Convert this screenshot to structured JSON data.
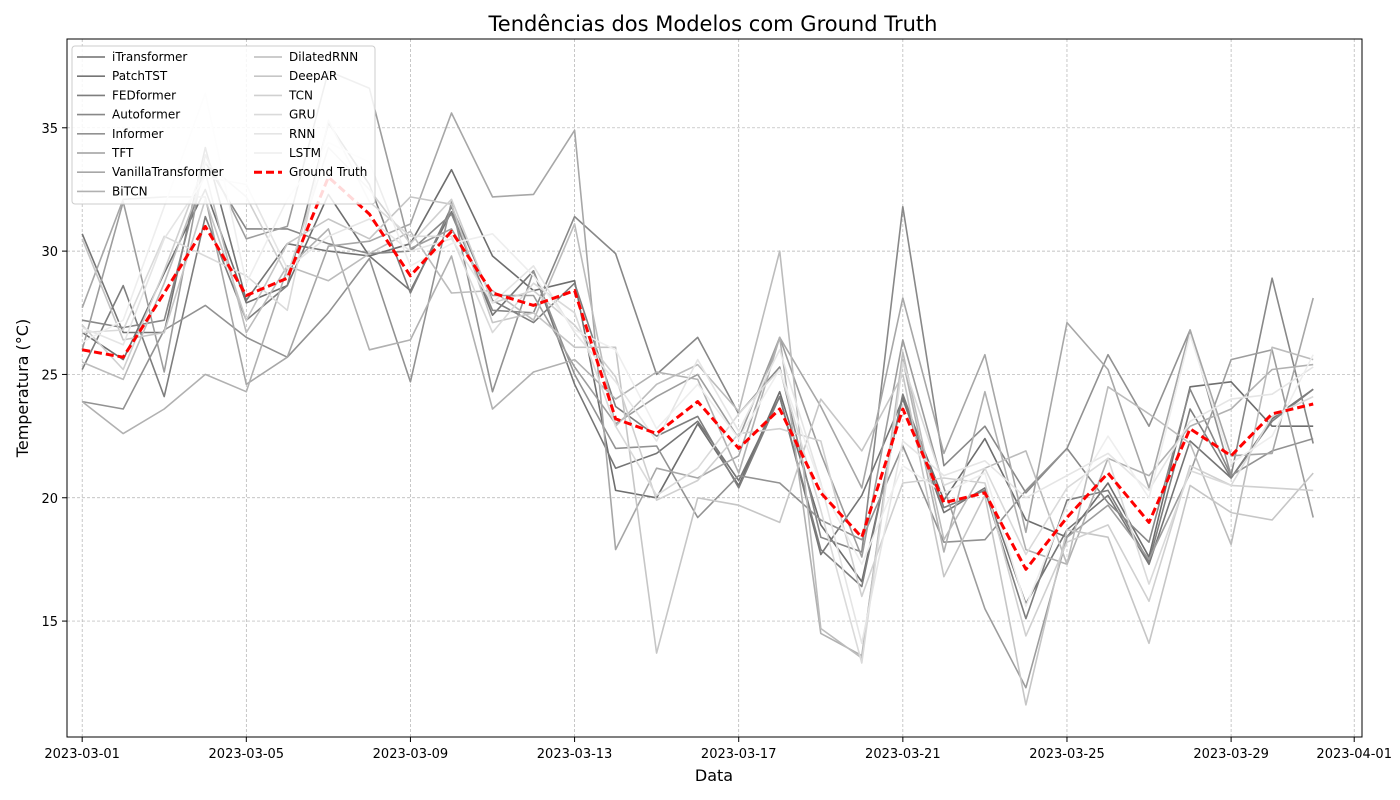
{
  "chart_data": {
    "type": "line",
    "title": "Tendências dos Modelos com Ground Truth",
    "xlabel": "Data",
    "ylabel": "Temperatura (°C)",
    "x": [
      "2023-03-01",
      "2023-03-02",
      "2023-03-03",
      "2023-03-04",
      "2023-03-05",
      "2023-03-06",
      "2023-03-07",
      "2023-03-08",
      "2023-03-09",
      "2023-03-10",
      "2023-03-11",
      "2023-03-12",
      "2023-03-13",
      "2023-03-14",
      "2023-03-15",
      "2023-03-16",
      "2023-03-17",
      "2023-03-18",
      "2023-03-19",
      "2023-03-20",
      "2023-03-21",
      "2023-03-22",
      "2023-03-23",
      "2023-03-24",
      "2023-03-25",
      "2023-03-26",
      "2023-03-27",
      "2023-03-28",
      "2023-03-29",
      "2023-03-30",
      "2023-03-31"
    ],
    "x_ticks": [
      "2023-03-01",
      "2023-03-05",
      "2023-03-09",
      "2023-03-13",
      "2023-03-17",
      "2023-03-21",
      "2023-03-25",
      "2023-03-29",
      "2023-04-01"
    ],
    "xlim": [
      "2023-02-28",
      "2023-04-01"
    ],
    "y_ticks": [
      15,
      20,
      25,
      30,
      35
    ],
    "ylim": [
      10.3,
      38.6
    ],
    "grid": true,
    "legend_position": "top-left",
    "series": [
      {
        "name": "iTransformer",
        "color": "#6e6e6e",
        "width": 1.6,
        "dash": "",
        "values": [
          26.7,
          25.6,
          29.1,
          32.5,
          27.9,
          28.6,
          32.3,
          29.8,
          30.3,
          33.3,
          29.8,
          28.4,
          28.8,
          20.3,
          20.0,
          23.0,
          20.5,
          24.3,
          18.9,
          16.6,
          24.1,
          19.9,
          22.4,
          19.1,
          18.4,
          20.6,
          17.6,
          24.5,
          24.7,
          22.9,
          22.9
        ]
      },
      {
        "name": "PatchTST",
        "color": "#757575",
        "width": 1.6,
        "dash": "",
        "values": [
          30.7,
          26.7,
          26.7,
          34.2,
          28.0,
          30.3,
          30.0,
          29.8,
          28.4,
          31.6,
          27.4,
          29.2,
          24.6,
          21.2,
          21.8,
          23.1,
          20.7,
          24.1,
          17.7,
          20.1,
          24.0,
          19.4,
          20.4,
          15.7,
          18.7,
          20.1,
          17.3,
          22.3,
          20.8,
          23.2,
          24.4
        ]
      },
      {
        "name": "FEDformer",
        "color": "#7e7e7e",
        "width": 1.6,
        "dash": "",
        "values": [
          25.2,
          28.6,
          24.1,
          31.4,
          27.2,
          28.6,
          35.2,
          32.7,
          28.3,
          31.8,
          28.0,
          27.1,
          28.7,
          23.7,
          22.5,
          23.3,
          20.4,
          24.1,
          17.9,
          16.4,
          24.2,
          19.6,
          20.3,
          15.1,
          19.9,
          20.3,
          17.4,
          23.6,
          20.8,
          23.1,
          24.4
        ]
      },
      {
        "name": "Autoformer",
        "color": "#888888",
        "width": 1.6,
        "dash": "",
        "values": [
          27.2,
          26.9,
          27.2,
          33.6,
          30.9,
          30.9,
          30.3,
          29.9,
          30.0,
          31.5,
          27.6,
          27.5,
          31.4,
          29.9,
          25.0,
          26.5,
          23.4,
          25.3,
          18.4,
          17.8,
          31.8,
          21.3,
          22.9,
          20.2,
          22.0,
          19.8,
          18.2,
          24.4,
          20.9,
          28.9,
          22.2
        ]
      },
      {
        "name": "Informer",
        "color": "#929292",
        "width": 1.6,
        "dash": "",
        "values": [
          23.9,
          23.6,
          26.8,
          27.8,
          26.5,
          25.7,
          27.5,
          29.7,
          24.7,
          32.0,
          24.3,
          29.2,
          25.0,
          22.0,
          22.1,
          19.2,
          20.9,
          20.6,
          19.1,
          18.3,
          22.1,
          18.2,
          18.3,
          20.3,
          22.0,
          25.8,
          22.9,
          26.8,
          20.9,
          21.9,
          22.4
        ]
      },
      {
        "name": "TFT",
        "color": "#9d9d9d",
        "width": 1.6,
        "dash": "",
        "values": [
          26.0,
          32.0,
          25.1,
          33.9,
          30.5,
          31.0,
          37.3,
          36.6,
          30.1,
          30.9,
          28.2,
          28.2,
          25.3,
          23.0,
          24.1,
          25.0,
          22.4,
          26.5,
          21.8,
          17.6,
          26.4,
          20.4,
          15.5,
          12.3,
          18.4,
          19.7,
          17.5,
          21.0,
          25.6,
          26.0,
          19.2
        ]
      },
      {
        "name": "VanillaTransformer",
        "color": "#a7a7a7",
        "width": 1.6,
        "dash": "",
        "values": [
          27.7,
          32.1,
          32.2,
          32.2,
          24.6,
          25.7,
          30.2,
          30.4,
          31.1,
          35.6,
          32.2,
          32.3,
          34.9,
          17.9,
          21.2,
          20.8,
          21.7,
          26.5,
          23.7,
          20.4,
          28.1,
          21.8,
          25.8,
          18.6,
          27.1,
          25.2,
          20.4,
          26.8,
          21.7,
          21.8,
          28.1
        ]
      },
      {
        "name": "BiTCN",
        "color": "#b1b1b1",
        "width": 1.6,
        "dash": "",
        "values": [
          23.9,
          22.6,
          23.6,
          25.0,
          24.3,
          29.3,
          30.9,
          26.0,
          26.4,
          29.8,
          23.6,
          25.1,
          25.6,
          24.0,
          25.1,
          24.8,
          21.0,
          26.5,
          14.5,
          13.6,
          25.6,
          17.8,
          24.3,
          17.9,
          17.3,
          21.6,
          20.9,
          22.9,
          23.6,
          25.2,
          25.4
        ]
      },
      {
        "name": "DilatedRNN",
        "color": "#bcbcbc",
        "width": 1.6,
        "dash": "",
        "values": [
          25.5,
          24.8,
          28.7,
          33.2,
          26.7,
          29.4,
          28.8,
          29.9,
          30.8,
          28.3,
          28.4,
          27.2,
          31.1,
          22.9,
          24.6,
          25.4,
          23.5,
          30.0,
          14.7,
          13.5,
          25.9,
          18.3,
          21.2,
          21.9,
          17.3,
          24.5,
          23.4,
          22.2,
          18.1,
          26.1,
          25.6
        ]
      },
      {
        "name": "DeepAR",
        "color": "#c6c6c6",
        "width": 1.6,
        "dash": "",
        "values": [
          30.5,
          26.4,
          26.7,
          32.1,
          27.2,
          30.3,
          31.3,
          30.5,
          32.2,
          31.9,
          27.1,
          27.5,
          26.1,
          26.1,
          13.7,
          20.0,
          19.7,
          19.0,
          24.0,
          21.9,
          25.0,
          16.8,
          20.1,
          11.6,
          18.7,
          18.4,
          14.1,
          20.5,
          19.4,
          19.1,
          21.0
        ]
      },
      {
        "name": "TCN",
        "color": "#d0d0d0",
        "width": 1.6,
        "dash": "",
        "values": [
          27.0,
          25.2,
          29.2,
          33.6,
          32.2,
          29.0,
          34.2,
          32.5,
          30.3,
          32.1,
          27.9,
          28.4,
          27.0,
          24.9,
          19.9,
          20.7,
          22.6,
          22.8,
          22.3,
          16.0,
          20.6,
          20.8,
          20.6,
          14.4,
          18.2,
          18.9,
          15.8,
          21.3,
          20.5,
          20.4,
          20.3
        ]
      },
      {
        "name": "GRU",
        "color": "#dadada",
        "width": 1.6,
        "dash": "",
        "values": [
          26.7,
          26.8,
          30.6,
          29.8,
          29.0,
          27.6,
          35.3,
          32.0,
          30.6,
          30.6,
          26.7,
          28.7,
          27.5,
          22.9,
          20.1,
          21.2,
          23.4,
          25.2,
          19.5,
          13.3,
          25.5,
          20.5,
          21.2,
          17.7,
          20.4,
          21.6,
          16.5,
          21.1,
          20.5,
          23.3,
          24.1
        ]
      },
      {
        "name": "RNN",
        "color": "#e5e5e5",
        "width": 1.6,
        "dash": "",
        "values": [
          26.9,
          26.2,
          30.5,
          33.0,
          32.7,
          29.3,
          30.6,
          31.3,
          30.0,
          30.5,
          27.9,
          29.4,
          26.7,
          24.7,
          22.3,
          25.6,
          22.7,
          26.0,
          20.6,
          14.1,
          22.3,
          20.9,
          21.5,
          20.0,
          20.9,
          21.8,
          20.3,
          23.1,
          24.0,
          24.2,
          25.3
        ]
      },
      {
        "name": "LSTM",
        "color": "#eeeeee",
        "width": 1.6,
        "dash": "",
        "values": [
          26.3,
          27.2,
          31.8,
          36.4,
          28.7,
          32.1,
          34.4,
          33.6,
          29.4,
          30.3,
          30.7,
          29.0,
          26.8,
          26.0,
          22.8,
          24.6,
          22.4,
          25.2,
          20.5,
          17.3,
          21.3,
          20.2,
          21.0,
          15.6,
          19.7,
          22.5,
          20.0,
          26.6,
          21.4,
          22.5,
          25.8
        ]
      },
      {
        "name": "Ground Truth",
        "color": "#ff0000",
        "width": 3,
        "dash": "8,4",
        "values": [
          26.0,
          25.7,
          28.3,
          31.0,
          28.2,
          28.9,
          33.0,
          31.5,
          29.0,
          30.8,
          28.3,
          27.8,
          28.4,
          23.2,
          22.6,
          23.9,
          22.0,
          23.6,
          20.2,
          18.4,
          23.6,
          19.8,
          20.2,
          17.1,
          19.2,
          21.0,
          19.0,
          22.8,
          21.7,
          23.4,
          23.8
        ]
      }
    ]
  }
}
